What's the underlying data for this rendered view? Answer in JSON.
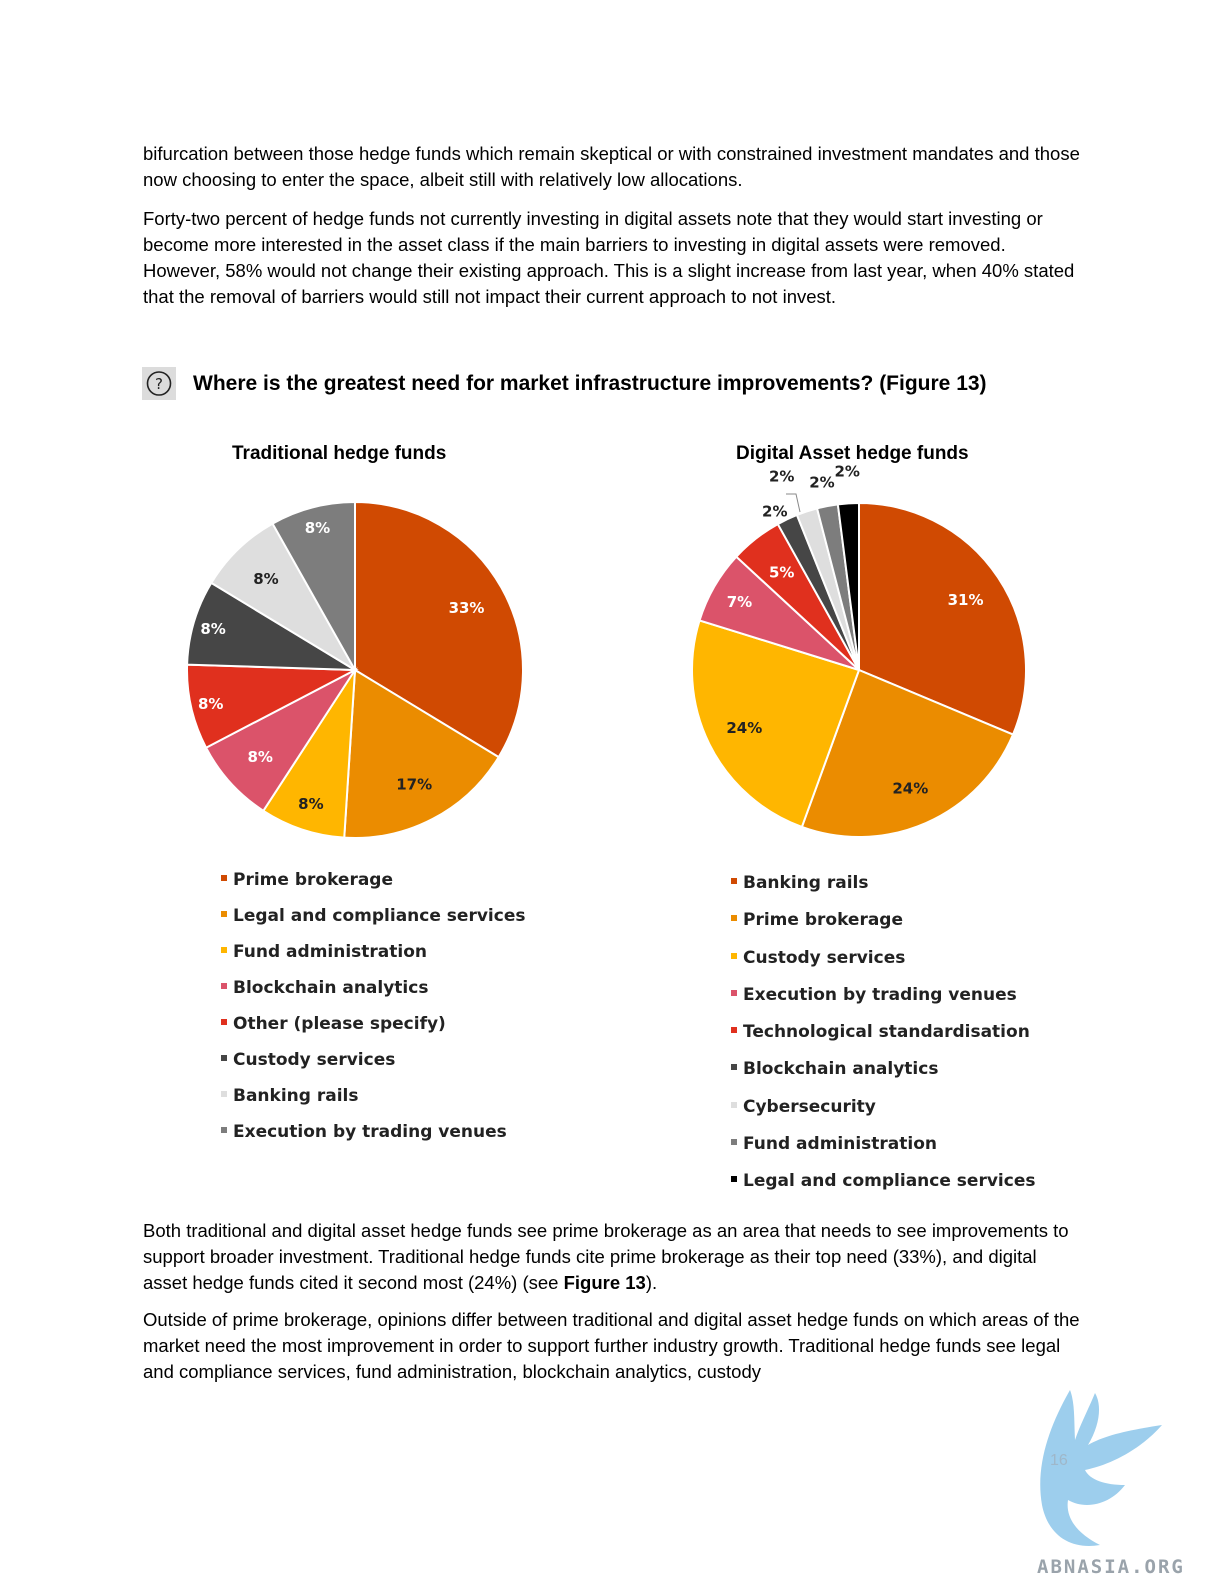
{
  "paragraphs": {
    "p1": "bifurcation between those hedge funds which remain skeptical or with constrained investment mandates and those now choosing to enter the space, albeit still with relatively low allocations.",
    "p2": "Forty-two percent of hedge funds not currently investing in digital assets note that they would start investing or become more interested in the asset class if the main barriers to investing in digital assets were removed. However, 58% would not change their existing approach. This is a slight increase from last year, when 40% stated that the removal of barriers would still not impact their current approach to not invest.",
    "p3_before": "Both traditional and digital asset hedge funds see prime brokerage as an area that needs to see improvements to support broader investment. Traditional hedge funds cite prime brokerage as their top need (33%), and digital asset hedge funds cited it second most (24%) (see ",
    "p3_bold": "Figure 13",
    "p3_after": ").",
    "p4": "Outside of prime brokerage, opinions differ between traditional and digital asset hedge funds on which areas of the market need the most improvement in order to support further industry growth. Traditional hedge funds see legal and compliance services, fund administration, blockchain analytics, custody"
  },
  "question": "Where is the greatest need for market infrastructure improvements? (Figure 13)",
  "question_icon": "help-circle-icon",
  "page_number": "16",
  "watermark_text": "ABNASIA.ORG",
  "chart_data": [
    {
      "type": "pie",
      "title": "Traditional hedge funds",
      "labels": [
        "Prime brokerage",
        "Legal and compliance services",
        "Fund administration",
        "Blockchain analytics",
        "Other (please specify)",
        "Custody services",
        "Banking rails",
        "Execution by trading venues"
      ],
      "values": [
        33,
        17,
        8,
        8,
        8,
        8,
        8,
        8
      ],
      "value_labels": [
        "33%",
        "17%",
        "8%",
        "8%",
        "8%",
        "8%",
        "8%",
        "8%"
      ],
      "colors": [
        "#d04a02",
        "#eb8c00",
        "#ffb600",
        "#db536a",
        "#e0301e",
        "#464646",
        "#dedede",
        "#7d7d7d"
      ],
      "label_colors": [
        "#ffffff",
        "#222222",
        "#222222",
        "#ffffff",
        "#ffffff",
        "#ffffff",
        "#222222",
        "#ffffff"
      ],
      "legend_placement": "bottom"
    },
    {
      "type": "pie",
      "title": "Digital Asset hedge funds",
      "labels": [
        "Banking rails",
        "Prime brokerage",
        "Custody services",
        "Execution by trading venues",
        "Technological standardisation",
        "Blockchain analytics",
        "Cybersecurity",
        "Fund administration",
        "Legal and compliance services"
      ],
      "values": [
        31,
        24,
        24,
        7,
        5,
        2,
        2,
        2,
        2
      ],
      "value_labels": [
        "31%",
        "24%",
        "24%",
        "7%",
        "5%",
        "2%",
        "2%",
        "2%",
        "2%"
      ],
      "colors": [
        "#d04a02",
        "#eb8c00",
        "#ffb600",
        "#db536a",
        "#e0301e",
        "#464646",
        "#dedede",
        "#7d7d7d",
        "#000000"
      ],
      "label_colors": [
        "#ffffff",
        "#222222",
        "#222222",
        "#ffffff",
        "#ffffff",
        "#222222",
        "#222222",
        "#222222",
        "#222222"
      ],
      "legend_placement": "bottom"
    }
  ]
}
